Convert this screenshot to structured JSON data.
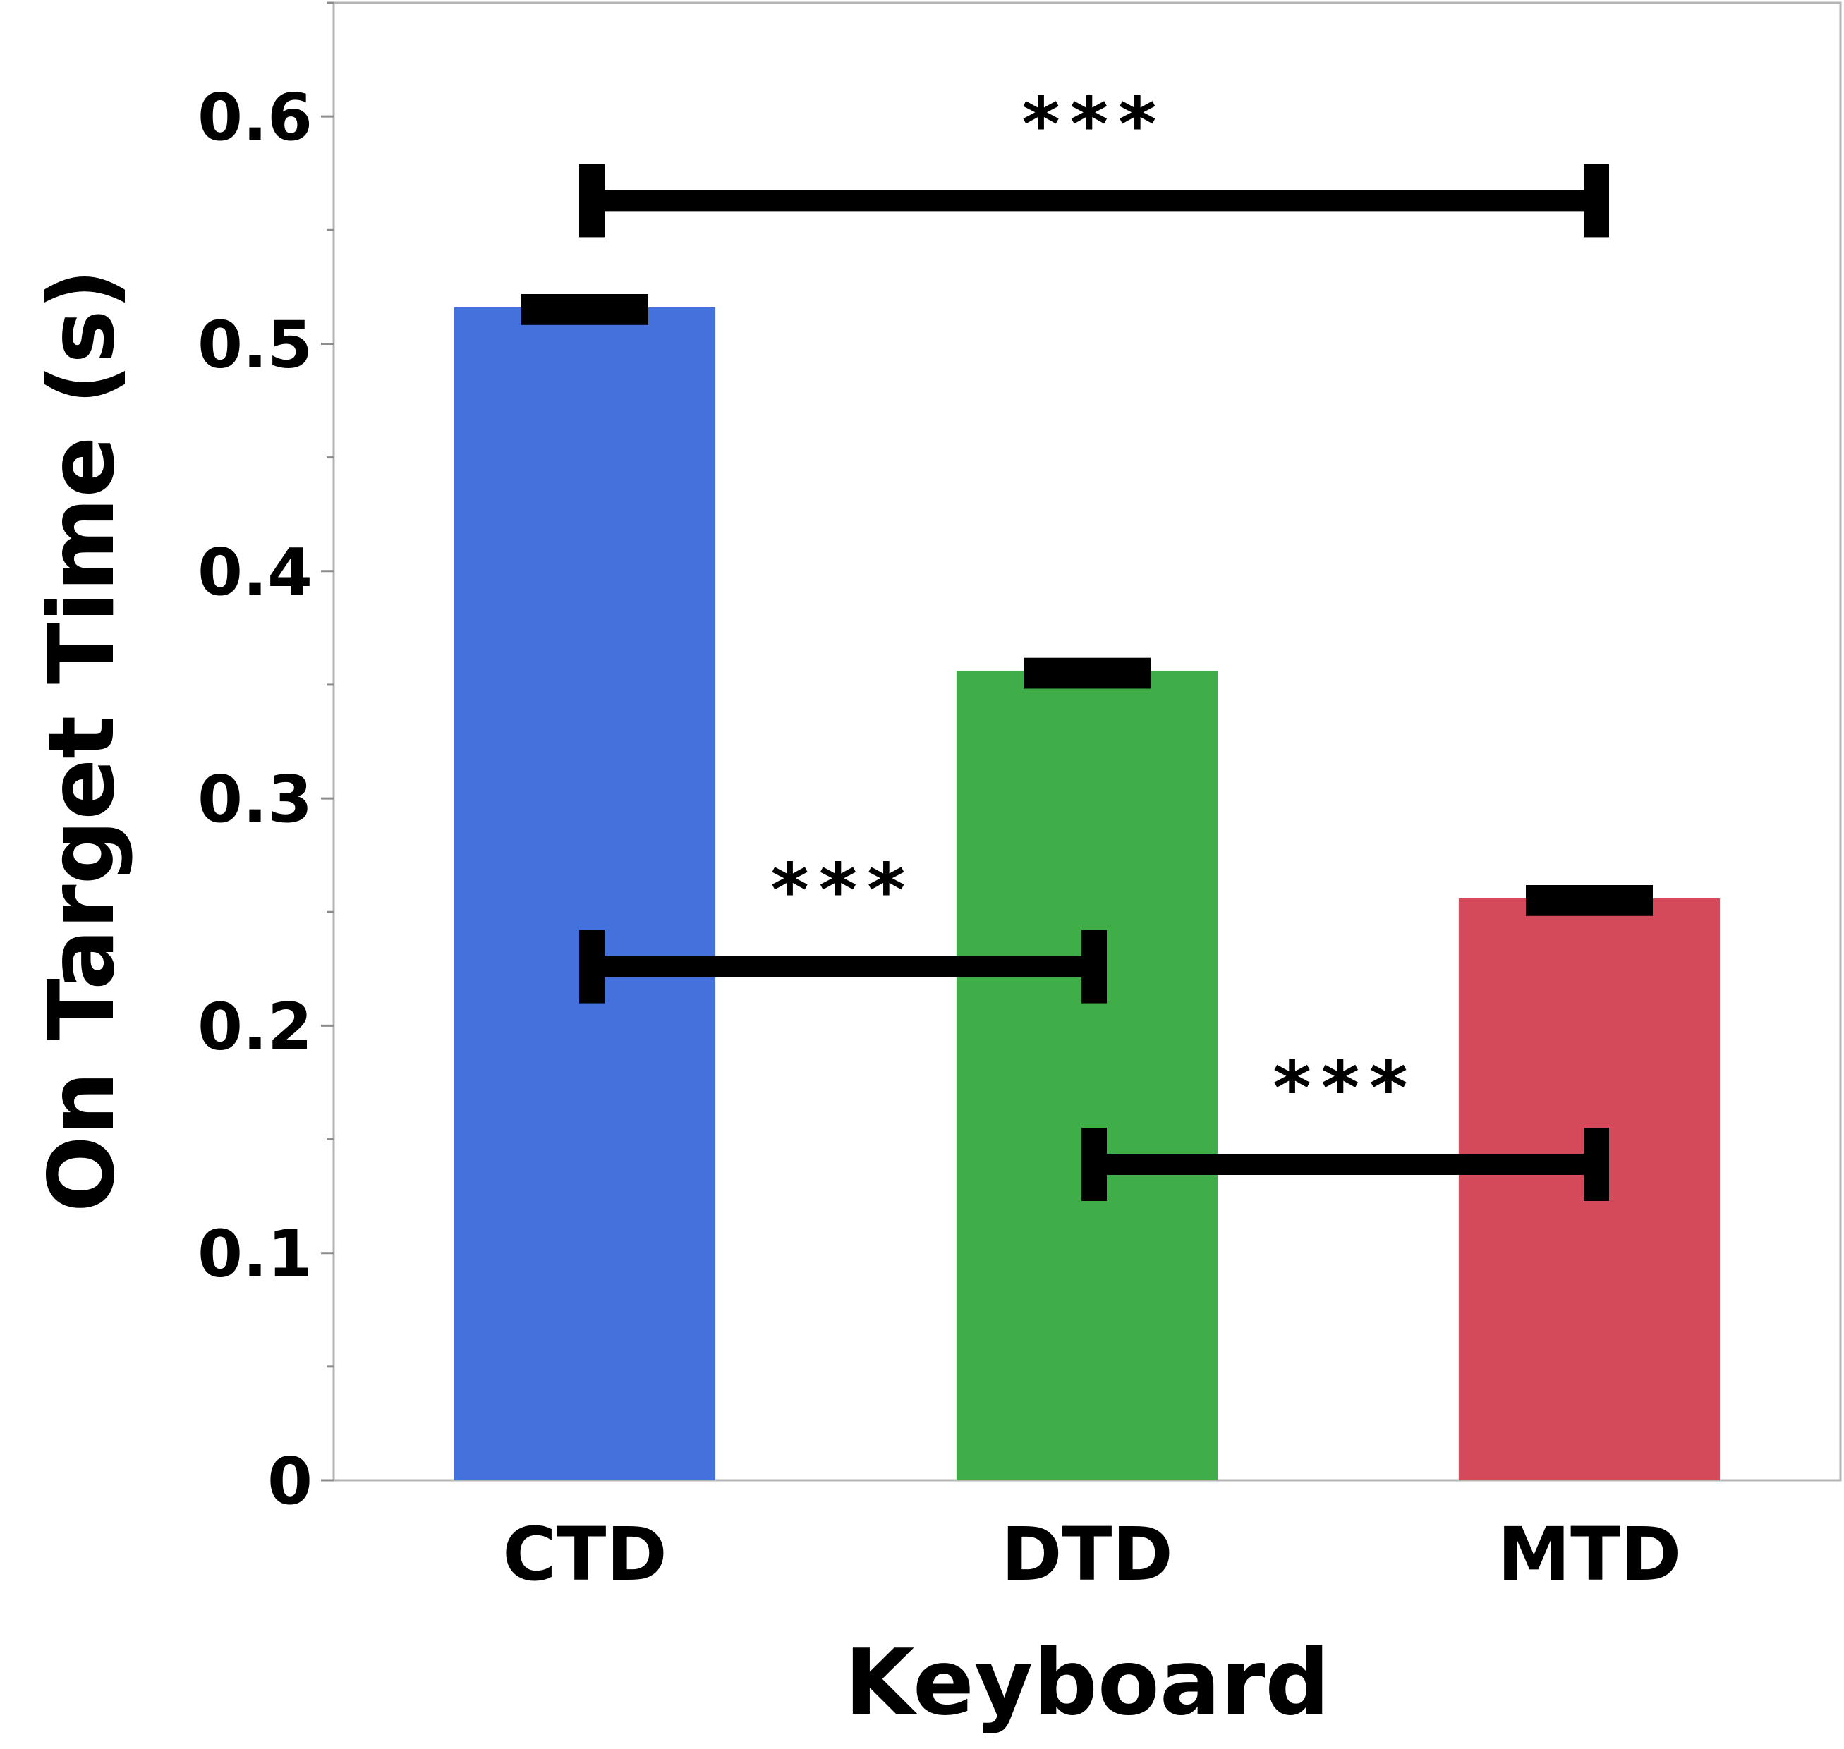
{
  "chart_data": {
    "type": "bar",
    "title": "",
    "xlabel": "Keyboard",
    "ylabel": "On Target Time (s)",
    "ylim": [
      0,
      0.65
    ],
    "yticks": [
      "0",
      "0.1",
      "0.2",
      "0.3",
      "0.4",
      "0.5",
      "0.6"
    ],
    "categories": [
      "CTD",
      "DTD",
      "MTD"
    ],
    "values": [
      0.516,
      0.356,
      0.256
    ],
    "error": [
      0.004,
      0.004,
      0.004
    ],
    "colors": [
      "#4471dc",
      "#3fae48",
      "#d44a5a"
    ],
    "significance": [
      {
        "from": "CTD",
        "to": "MTD",
        "y": 0.563,
        "label": "***"
      },
      {
        "from": "CTD",
        "to": "DTD",
        "y": 0.226,
        "label": "***"
      },
      {
        "from": "DTD",
        "to": "MTD",
        "y": 0.139,
        "label": "***"
      }
    ],
    "grid": false,
    "legend": "none"
  }
}
